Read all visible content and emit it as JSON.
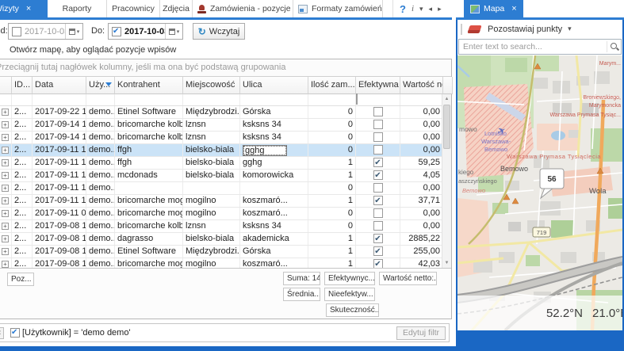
{
  "icons": {
    "close": "×",
    "chevron_down": "▾",
    "help": "?",
    "info": "i",
    "tab_scroll_left": "◂",
    "tab_scroll_right": "▸",
    "dropdown": "▾",
    "refresh": "↻",
    "check": "✔",
    "plus": "+",
    "sort_desc": "▾",
    "scroll_up": "▲",
    "scroll_down": "▼"
  },
  "colors": {
    "accent_tab": "#2d7dd2",
    "accent_bar": "#1a67c4",
    "selected_row": "#cbe3f7"
  },
  "left_panel": {
    "tabs": [
      {
        "label": "Wizyty",
        "active": true
      },
      {
        "label": "Raporty"
      },
      {
        "label": "Pracownicy"
      },
      {
        "label": "Zdjęcia"
      },
      {
        "label": "Zamówienia - pozycje"
      },
      {
        "label": "Formaty zamówień"
      }
    ],
    "toolbar": {
      "from_label": "Od:",
      "from_value": "2017-10-03",
      "from_checked": false,
      "to_label": "Do:",
      "to_value": "2017-10-03",
      "to_checked": true,
      "load_button": "Wczytaj"
    },
    "map_hint": "Otwórz mapę, aby oglądać pozycje wpisów",
    "grid": {
      "group_hint": "Przeciągnij tutaj nagłówek kolumny, jeśli ma ona być podstawą grupowania",
      "columns": [
        {
          "label": "ID...",
          "sorted": true
        },
        {
          "label": "Data"
        },
        {
          "label": "Uży...",
          "filtered": true
        },
        {
          "label": "Kontrahent"
        },
        {
          "label": "Miejscowość"
        },
        {
          "label": "Ulica"
        },
        {
          "label": "Ilość zam..."
        },
        {
          "label": "Efektywna"
        },
        {
          "label": "Wartość netto"
        }
      ],
      "rows": [
        {
          "id": "2...",
          "date": "2017-09-22 1...",
          "user": "demo...",
          "contractor": "Etinel Software",
          "city": "Międzybrodzi...",
          "street": "Górska",
          "qty": "0",
          "effective": false,
          "net": "0,00"
        },
        {
          "id": "2...",
          "date": "2017-09-14 1...",
          "user": "demo...",
          "contractor": "bricomarche kolb...",
          "city": "lznsn",
          "street": "ksksns 34",
          "qty": "0",
          "effective": false,
          "net": "0,00"
        },
        {
          "id": "2...",
          "date": "2017-09-14 1...",
          "user": "demo...",
          "contractor": "bricomarche kolb...",
          "city": "lznsn",
          "street": "ksksns 34",
          "qty": "0",
          "effective": false,
          "net": "0,00"
        },
        {
          "id": "2...",
          "date": "2017-09-11 1...",
          "user": "demo...",
          "contractor": "ffgh",
          "city": "bielsko-biala",
          "street": "gghg",
          "qty": "0",
          "effective": false,
          "net": "0,00",
          "selected": true,
          "editing": true
        },
        {
          "id": "2...",
          "date": "2017-09-11 1...",
          "user": "demo...",
          "contractor": "ffgh",
          "city": "bielsko-biala",
          "street": "gghg",
          "qty": "1",
          "effective": true,
          "net": "59,25"
        },
        {
          "id": "2...",
          "date": "2017-09-11 1...",
          "user": "demo...",
          "contractor": "mcdonads",
          "city": "bielsko-biala",
          "street": "komorowicka",
          "qty": "1",
          "effective": true,
          "net": "4,05"
        },
        {
          "id": "2...",
          "date": "2017-09-11 1...",
          "user": "demo...",
          "contractor": "",
          "city": "",
          "street": "",
          "qty": "0",
          "effective": false,
          "net": "0,00"
        },
        {
          "id": "2...",
          "date": "2017-09-11 1...",
          "user": "demo...",
          "contractor": "bricomarche mogilno",
          "city": "mogilno",
          "street": "koszmaró...",
          "qty": "1",
          "effective": true,
          "net": "37,71"
        },
        {
          "id": "2...",
          "date": "2017-09-11 0...",
          "user": "demo...",
          "contractor": "bricomarche mogilno",
          "city": "mogilno",
          "street": "koszmaró...",
          "qty": "0",
          "effective": false,
          "net": "0,00"
        },
        {
          "id": "2...",
          "date": "2017-09-08 1...",
          "user": "demo...",
          "contractor": "bricomarche kolb...",
          "city": "lznsn",
          "street": "ksksns 34",
          "qty": "0",
          "effective": false,
          "net": "0,00"
        },
        {
          "id": "2...",
          "date": "2017-09-08 1...",
          "user": "demo...",
          "contractor": "dagrasso",
          "city": "bielsko-biala",
          "street": "akademicka",
          "qty": "1",
          "effective": true,
          "net": "2885,22"
        },
        {
          "id": "2...",
          "date": "2017-09-08 1...",
          "user": "demo...",
          "contractor": "Etinel Software",
          "city": "Międzybrodzi...",
          "street": "Górska",
          "qty": "1",
          "effective": true,
          "net": "255,00"
        },
        {
          "id": "2...",
          "date": "2017-09-08 1...",
          "user": "demo...",
          "contractor": "bricomarche mogilno",
          "city": "mogilno",
          "street": "koszmaró...",
          "qty": "1",
          "effective": true,
          "net": "42,03"
        }
      ],
      "summary": {
        "poz": "Poz...",
        "sum": "Suma: 14",
        "avg": "Średnia...",
        "effective": "Efektywnyc...",
        "ineffective": "Nieefektyw...",
        "success": "Skuteczność...",
        "net": "Wartość netto:..."
      }
    },
    "filter_bar": {
      "text": "[Użytkownik] = 'demo demo'",
      "edit_button": "Edytuj filtr"
    }
  },
  "right_panel": {
    "tab_label": "Mapa",
    "toolbar": {
      "leave_points_label": "Pozostawiaj punkty"
    },
    "search": {
      "placeholder": "Enter text to search..."
    },
    "map": {
      "label_mowo": "mowo",
      "airport_line1": "Lotnisko",
      "airport_line2": "Warszawa-",
      "airport_line3": "Bemowo",
      "label_marym": "Marym...",
      "label_broniewskiego": "Broniewskiego,",
      "label_marymoncka": "Marymoncka",
      "label_prymasa_short": "Warszawa Prymasa Tysiąc...",
      "label_prymasa_long": "Warszawa Prymasa Tysiąclecia",
      "district_bemowo": "Bemowo",
      "label_kiego": "kiego",
      "label_laszczynskiego": "aszczyńskiego",
      "district_bemowo_small": "Bemowo",
      "district_wola": "Wola",
      "marker_value": "56",
      "route_shield": "719",
      "coord_lat": "52.2°N",
      "coord_lon": "21.0°E"
    }
  }
}
